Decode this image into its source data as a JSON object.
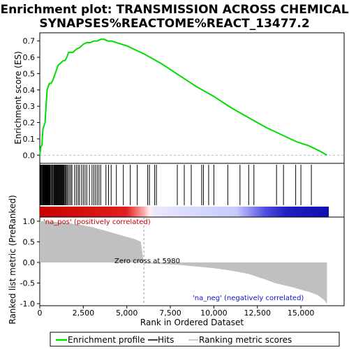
{
  "chart_data": {
    "type": "line",
    "title_line1": "Enrichment plot: TRANSMISSION ACROSS CHEMICAL",
    "title_line2": "SYNAPSES%REACTOME%REACT_13477.2",
    "es_panel": {
      "ylabel": "Enrichment score (ES)",
      "ylim": [
        -0.05,
        0.75
      ],
      "yticks": [
        "0.0",
        "0.1",
        "0.2",
        "0.3",
        "0.4",
        "0.5",
        "0.6",
        "0.7"
      ],
      "ytick_values": [
        0.0,
        0.1,
        0.2,
        0.3,
        0.4,
        0.5,
        0.6,
        0.7
      ],
      "x": [
        0,
        60,
        120,
        180,
        240,
        300,
        360,
        420,
        480,
        550,
        650,
        750,
        850,
        950,
        1050,
        1150,
        1250,
        1350,
        1450,
        1550,
        1650,
        1750,
        1900,
        2100,
        2300,
        2500,
        2700,
        2900,
        3100,
        3300,
        3500,
        3700,
        3900,
        4100,
        4400,
        5000,
        6000,
        7000,
        8000,
        9000,
        10000,
        11000,
        12000,
        13000,
        13600,
        14200,
        14800,
        15400,
        16000,
        16500
      ],
      "y": [
        0.0,
        0.05,
        0.06,
        0.16,
        0.18,
        0.2,
        0.3,
        0.4,
        0.42,
        0.44,
        0.44,
        0.46,
        0.49,
        0.52,
        0.55,
        0.56,
        0.57,
        0.58,
        0.58,
        0.6,
        0.63,
        0.63,
        0.63,
        0.65,
        0.66,
        0.68,
        0.69,
        0.69,
        0.7,
        0.7,
        0.71,
        0.71,
        0.7,
        0.7,
        0.69,
        0.67,
        0.62,
        0.56,
        0.49,
        0.42,
        0.36,
        0.29,
        0.23,
        0.17,
        0.14,
        0.11,
        0.08,
        0.06,
        0.03,
        0.0
      ]
    },
    "hits_panel": {
      "hits": [
        30,
        60,
        90,
        130,
        170,
        200,
        230,
        260,
        290,
        320,
        340,
        360,
        380,
        400,
        420,
        440,
        460,
        480,
        500,
        520,
        560,
        600,
        650,
        700,
        750,
        800,
        840,
        880,
        920,
        960,
        1000,
        1040,
        1080,
        1120,
        1160,
        1200,
        1240,
        1280,
        1320,
        1360,
        1400,
        1450,
        1500,
        1560,
        1620,
        1700,
        1780,
        1850,
        2000,
        2100,
        2200,
        2280,
        2400,
        2500,
        2600,
        2700,
        2850,
        3000,
        3100,
        3200,
        3300,
        3400,
        3500,
        3800,
        3950,
        4100,
        4400,
        4800,
        5200,
        5600,
        6200,
        6300,
        6600,
        6700,
        7900,
        8300,
        8700,
        9300,
        9400,
        9700,
        10000,
        10800,
        11500,
        12000,
        12300,
        13600,
        14000,
        14700,
        15000,
        15600
      ]
    },
    "rank_panel": {
      "ylabel": "Ranked list metric (PreRanked)",
      "ylim": [
        -1.05,
        1.1
      ],
      "yticks": [
        "1.0",
        "0.5",
        "0.0",
        "-0.5",
        "-1.0"
      ],
      "ytick_values": [
        1.0,
        0.5,
        0.0,
        -0.5,
        -1.0
      ],
      "x": [
        0,
        300,
        600,
        1000,
        1500,
        2000,
        2500,
        3000,
        3500,
        4000,
        4500,
        5000,
        5500,
        5800,
        5980,
        6200,
        7000,
        8000,
        9000,
        10000,
        11000,
        12000,
        12500,
        13000,
        13500,
        14000,
        14500,
        15000,
        15500,
        16000,
        16300,
        16500
      ],
      "y": [
        1.0,
        1.0,
        0.99,
        0.98,
        0.96,
        0.93,
        0.9,
        0.86,
        0.8,
        0.74,
        0.68,
        0.62,
        0.56,
        0.5,
        0.0,
        -0.02,
        -0.04,
        -0.06,
        -0.1,
        -0.14,
        -0.2,
        -0.28,
        -0.35,
        -0.42,
        -0.5,
        -0.55,
        -0.6,
        -0.66,
        -0.72,
        -0.8,
        -0.9,
        -1.0
      ],
      "zero_cross_label": "Zero cross at 5980",
      "zero_cross": 5980,
      "pos_label": "'na_pos' (positively correlated)",
      "neg_label": "'na_neg' (negatively correlated)"
    },
    "xlabel": "Rank in Ordered Dataset",
    "xlim": [
      0,
      16600
    ],
    "xticks": [
      "0",
      "2,500",
      "5,000",
      "7,500",
      "10,000",
      "12,500",
      "15,000"
    ],
    "xtick_values": [
      0,
      2500,
      5000,
      7500,
      10000,
      12500,
      15000
    ],
    "legend": [
      {
        "label": "Enrichment profile",
        "color": "#00cc00"
      },
      {
        "label": "Hits",
        "color": "#000000"
      },
      {
        "label": "Ranking metric scores",
        "color": "#bbbbbb"
      }
    ]
  },
  "colors": {
    "es_line": "#00dd00",
    "hit": "#000000",
    "metric_fill": "#c0c0c0",
    "pos_note": "#c00000",
    "neg_note": "#1010c8"
  }
}
